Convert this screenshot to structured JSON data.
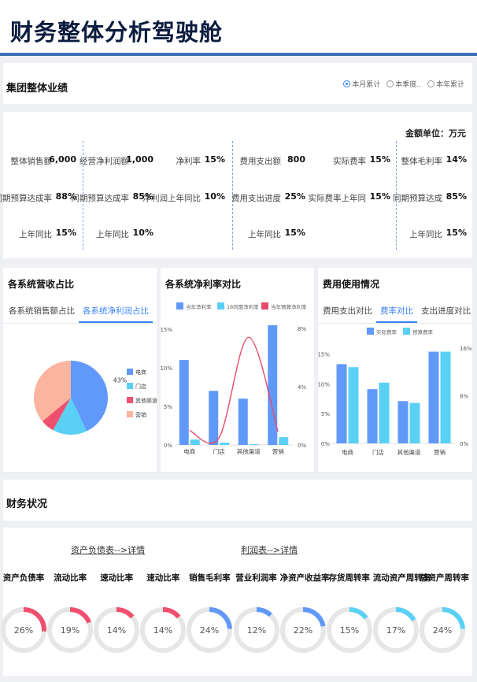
{
  "page": {
    "title": "财务整体分析驾驶舱"
  },
  "group": {
    "title": "集团整体业绩",
    "radios": [
      {
        "label": "本月累计",
        "active": true
      },
      {
        "label": "本季度..",
        "active": false
      },
      {
        "label": "本年累计",
        "active": false
      }
    ],
    "unit_label": "金额单位：万元",
    "kpis": [
      {
        "label": "整体销售额",
        "value": "6,000"
      },
      {
        "label": "经营净利润额",
        "value": "1,000"
      },
      {
        "label": "净利率",
        "value": "15%"
      },
      {
        "label": "费用支出额",
        "value": "800"
      },
      {
        "label": "实际费率",
        "value": "15%"
      },
      {
        "label": "整体毛利率",
        "value": "14%"
      },
      {
        "label": "同期预算达成率",
        "value": "88%"
      },
      {
        "label": "同期预算达成率",
        "value": "85%"
      },
      {
        "label": "净利润上年同比",
        "value": "10%"
      },
      {
        "label": "费用支出进度",
        "value": "25%"
      },
      {
        "label": "实际费率上年同",
        "value": "15%"
      },
      {
        "label": "同期预算达成",
        "value": "85%"
      },
      {
        "label": "上年同比",
        "value": "15%"
      },
      {
        "label": "上年同比",
        "value": "10%"
      },
      {
        "label": "上年同比",
        "value": "15%"
      },
      {
        "label": "上年同比",
        "value": "15%"
      }
    ]
  },
  "revenue_card": {
    "title": "各系统营收占比",
    "tabs": [
      {
        "label": "各系统销售额占比",
        "active": false
      },
      {
        "label": "各系统净利润占比",
        "active": true
      }
    ]
  },
  "profit_card": {
    "title": "各系统净利率对比"
  },
  "expense_card": {
    "title": "费用使用情况",
    "tabs": [
      {
        "label": "费用支出对比",
        "active": false
      },
      {
        "label": "费率对比",
        "active": true
      },
      {
        "label": "支出进度对比",
        "active": false
      }
    ]
  },
  "chart_data": [
    {
      "type": "pie",
      "labels": [
        "电商",
        "门店",
        "其他渠道",
        "营销"
      ],
      "values": [
        43,
        15,
        6,
        36
      ],
      "data_labels": [
        "43%",
        "",
        "",
        ""
      ],
      "colors": [
        "#6199fb",
        "#5ad0f5",
        "#f0506e",
        "#fbb4a0"
      ]
    },
    {
      "type": "bar",
      "categories": [
        "电商",
        "门店",
        "其他渠道",
        "营销"
      ],
      "series": [
        {
          "name": "当年净利率",
          "kind": "bar",
          "axis": "left",
          "color": "#6199fb",
          "values": [
            11,
            7,
            6,
            15.5
          ]
        },
        {
          "name": "18同期净利率",
          "kind": "bar",
          "axis": "left",
          "color": "#5ad0f5",
          "values": [
            0.7,
            0.3,
            0.1,
            1.0
          ]
        },
        {
          "name": "当年预算净利率",
          "kind": "line",
          "axis": "right",
          "color": "#e84a6a",
          "values": [
            1.0,
            0.5,
            7.4,
            0.9
          ]
        }
      ],
      "yticks_left": [
        "0%",
        "5%",
        "10%",
        "15%"
      ],
      "yticks_right": [
        "0%",
        "4%",
        "8%"
      ],
      "ylim_left": [
        0,
        16
      ],
      "ylim_right": [
        0,
        8.5
      ]
    },
    {
      "type": "bar",
      "categories": [
        "电商",
        "门店",
        "其他渠道",
        "营销"
      ],
      "series": [
        {
          "name": "实际费率",
          "color": "#6199fb",
          "values": [
            13.3,
            9.1,
            7.1,
            15.4
          ]
        },
        {
          "name": "预算费率",
          "color": "#5ad0f5",
          "values": [
            12.8,
            10.2,
            6.8,
            15.4
          ]
        }
      ],
      "yticks_left": [
        "0%",
        "5%",
        "10%",
        "15%"
      ],
      "yticks_right": [
        "0%",
        "8%",
        "16%"
      ],
      "ylim": [
        0,
        16
      ]
    }
  ],
  "finance": {
    "title": "财务状况",
    "links": [
      "资产负债表-->详情",
      "利润表-->详情"
    ],
    "gauges": [
      {
        "label": "资产负债率",
        "value": 26,
        "text": "26%",
        "color": "#f0506e"
      },
      {
        "label": "流动比率",
        "value": 19,
        "text": "19%",
        "color": "#f0506e"
      },
      {
        "label": "速动比率",
        "value": 14,
        "text": "14%",
        "color": "#f0506e"
      },
      {
        "label": "速动比率",
        "value": 14,
        "text": "14%",
        "color": "#f0506e"
      },
      {
        "label": "销售毛利率",
        "value": 24,
        "text": "24%",
        "color": "#6199fb"
      },
      {
        "label": "营业利润率",
        "value": 12,
        "text": "12%",
        "color": "#6199fb"
      },
      {
        "label": "净资产收益率",
        "value": 22,
        "text": "22%",
        "color": "#6199fb"
      },
      {
        "label": "存货周转率",
        "value": 15,
        "text": "15%",
        "color": "#5ad0f5"
      },
      {
        "label": "流动资产周转率",
        "value": 17,
        "text": "17%",
        "color": "#5ad0f5"
      },
      {
        "label": "总资产周转率",
        "value": 24,
        "text": "24%",
        "color": "#5ad0f5"
      }
    ]
  }
}
